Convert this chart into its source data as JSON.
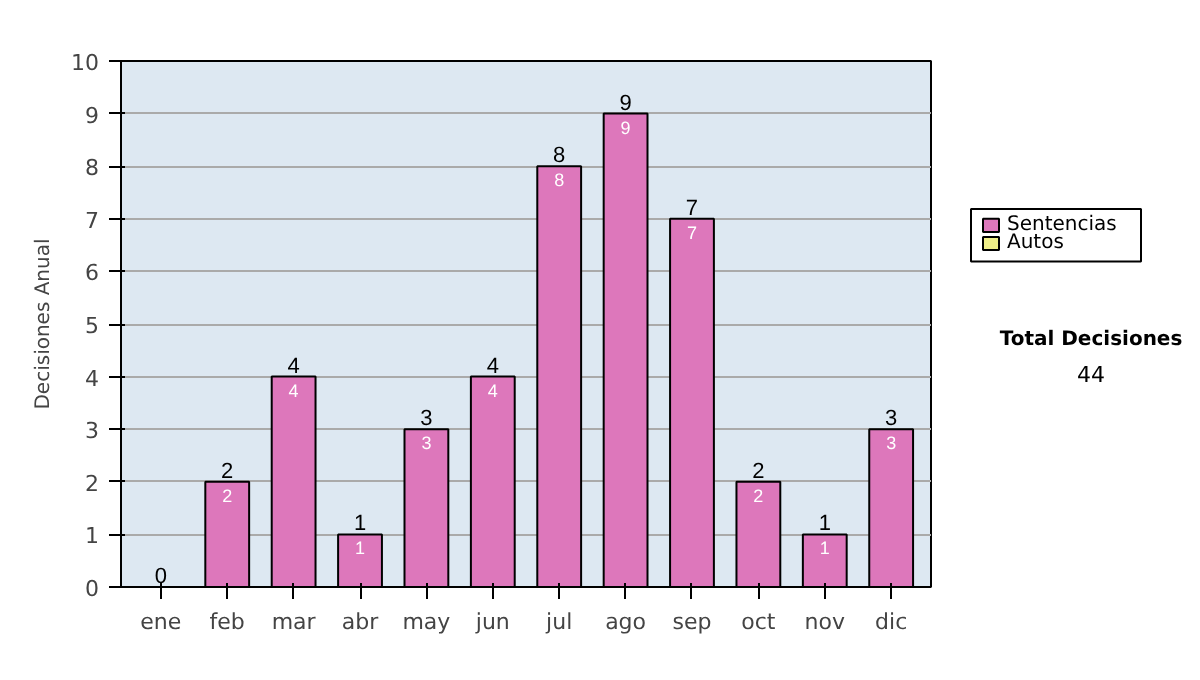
{
  "chart_data": {
    "type": "bar",
    "stacked": true,
    "ylabel": "Decisiones Anual",
    "categories": [
      "ene",
      "feb",
      "mar",
      "abr",
      "may",
      "jun",
      "jul",
      "ago",
      "sep",
      "oct",
      "nov",
      "dic"
    ],
    "series": [
      {
        "name": "Sentencias",
        "color": "#dd77bb",
        "values": [
          0,
          2,
          4,
          1,
          3,
          4,
          8,
          9,
          7,
          2,
          1,
          3
        ],
        "value_labels": [
          null,
          "2",
          "4",
          "1",
          "3",
          "4",
          "8",
          "9",
          "7",
          "2",
          "1",
          "3"
        ]
      },
      {
        "name": "Autos",
        "color": "#eeee88",
        "values": [
          0,
          0,
          0,
          0,
          0,
          0,
          0,
          0,
          0,
          0,
          0,
          0
        ]
      }
    ],
    "totals": [
      "0",
      "2",
      "4",
      "1",
      "3",
      "4",
      "8",
      "9",
      "7",
      "2",
      "1",
      "3"
    ],
    "ylim": [
      0,
      10
    ],
    "yticks": [
      0,
      1,
      2,
      3,
      4,
      5,
      6,
      7,
      8,
      9,
      10
    ],
    "grid": "y",
    "legend": "right",
    "annotations": [
      "Total Decisiones",
      "44"
    ]
  }
}
